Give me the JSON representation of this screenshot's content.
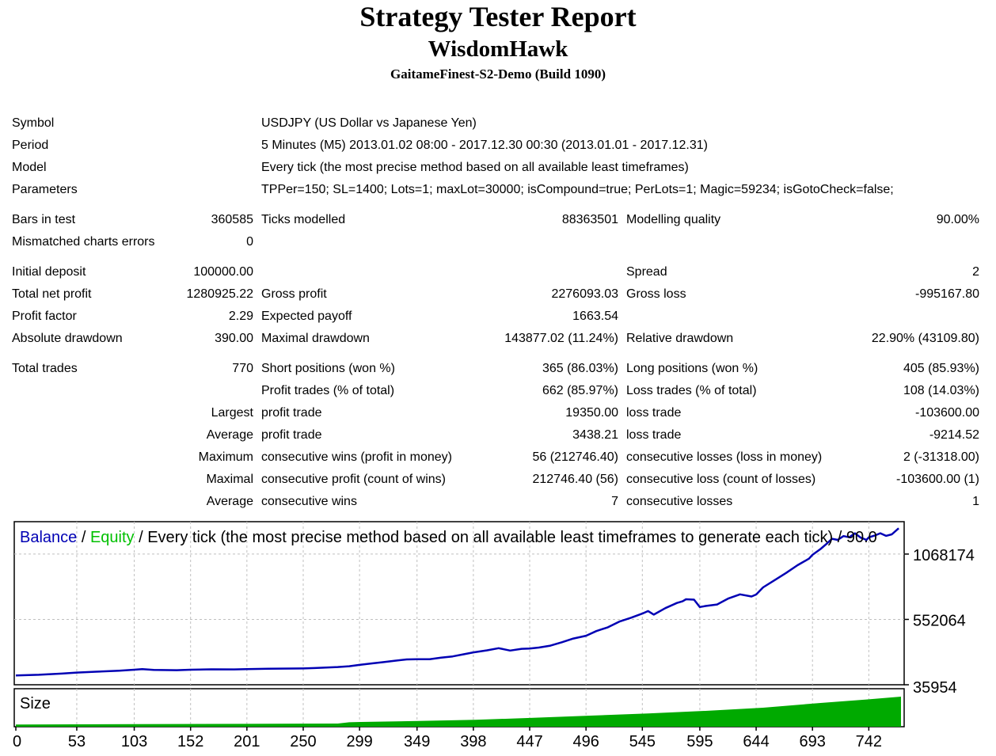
{
  "header": {
    "title": "Strategy Tester Report",
    "expert": "WisdomHawk",
    "server": "GaitameFinest-S2-Demo (Build 1090)"
  },
  "info": {
    "symbol_label": "Symbol",
    "symbol": "USDJPY (US Dollar vs Japanese Yen)",
    "period_label": "Period",
    "period": "5 Minutes (M5) 2013.01.02 08:00 - 2017.12.30 00:30 (2013.01.01 - 2017.12.31)",
    "model_label": "Model",
    "model": "Every tick (the most precise method based on all available least timeframes)",
    "parameters_label": "Parameters",
    "parameters": "TPPer=150; SL=1400; Lots=1; maxLot=30000; isCompound=true; PerLots=1; Magic=59234; isGotoCheck=false;"
  },
  "stats": {
    "bars_label": "Bars in test",
    "bars": "360585",
    "ticks_label": "Ticks modelled",
    "ticks": "88363501",
    "quality_label": "Modelling quality",
    "quality": "90.00%",
    "mismatch_label": "Mismatched charts errors",
    "mismatch": "0",
    "deposit_label": "Initial deposit",
    "deposit": "100000.00",
    "spread_label": "Spread",
    "spread": "2",
    "net_label": "Total net profit",
    "net": "1280925.22",
    "gross_profit_label": "Gross profit",
    "gross_profit": "2276093.03",
    "gross_loss_label": "Gross loss",
    "gross_loss": "-995167.80",
    "pf_label": "Profit factor",
    "pf": "2.29",
    "payoff_label": "Expected payoff",
    "payoff": "1663.54",
    "abs_dd_label": "Absolute drawdown",
    "abs_dd": "390.00",
    "max_dd_label": "Maximal drawdown",
    "max_dd": "143877.02 (11.24%)",
    "rel_dd_label": "Relative drawdown",
    "rel_dd": "22.90% (43109.80)"
  },
  "trades": {
    "total_label": "Total trades",
    "total": "770",
    "short_label": "Short positions (won %)",
    "short": "365 (86.03%)",
    "long_label": "Long positions (won %)",
    "long": "405 (85.93%)",
    "profit_trades_label": "Profit trades (% of total)",
    "profit_trades": "662 (85.97%)",
    "loss_trades_label": "Loss trades (% of total)",
    "loss_trades": "108 (14.03%)",
    "largest_label": "Largest",
    "average_label": "Average",
    "maximum_label": "Maximum",
    "maximal_label": "Maximal",
    "profit_trade_label": "profit trade",
    "loss_trade_label": "loss trade",
    "largest_profit": "19350.00",
    "largest_loss": "-103600.00",
    "average_profit": "3438.21",
    "average_loss": "-9214.52",
    "cons_wins_money_label": "consecutive wins (profit in money)",
    "cons_wins_money": "56 (212746.40)",
    "cons_losses_money_label": "consecutive losses (loss in money)",
    "cons_losses_money": "2 (-31318.00)",
    "cons_profit_count_label": "consecutive profit (count of wins)",
    "cons_profit_count": "212746.40 (56)",
    "cons_loss_count_label": "consecutive loss (count of losses)",
    "cons_loss_count": "-103600.00 (1)",
    "cons_wins_label": "consecutive wins",
    "cons_wins": "7",
    "cons_losses_label": "consecutive losses",
    "cons_losses": "1"
  },
  "chart_data": {
    "type": "line",
    "legend": {
      "balance": "Balance",
      "sep": " / ",
      "equity": "Equity",
      "rest": " / Every tick (the most precise method based on all available least timeframes to generate each tick) / 90.0"
    },
    "size_label": "Size",
    "colors": {
      "balance": "#0000b4",
      "equity": "#00c000",
      "size": "#00aa00",
      "grid": "#c0c0c0"
    },
    "ylim": [
      35954,
      1324000
    ],
    "y_ticks": [
      1068174,
      552064,
      35954
    ],
    "x_ticks": [
      0,
      53,
      103,
      152,
      201,
      250,
      299,
      349,
      398,
      447,
      496,
      545,
      595,
      644,
      693,
      742
    ],
    "xlim": [
      0,
      770
    ],
    "series": [
      {
        "name": "Balance",
        "x": [
          0,
          20,
          40,
          53,
          70,
          90,
          103,
          110,
          120,
          140,
          152,
          170,
          190,
          201,
          220,
          240,
          250,
          260,
          270,
          280,
          290,
          299,
          310,
          320,
          330,
          340,
          349,
          360,
          370,
          380,
          390,
          398,
          410,
          420,
          430,
          440,
          447,
          455,
          465,
          475,
          485,
          496,
          505,
          515,
          525,
          535,
          545,
          550,
          555,
          565,
          575,
          580,
          583,
          590,
          595,
          600,
          610,
          620,
          630,
          640,
          644,
          650,
          660,
          670,
          680,
          690,
          693,
          700,
          705,
          710,
          715,
          720,
          725,
          730,
          735,
          740,
          742,
          747,
          752,
          757,
          762,
          768
        ],
        "y": [
          110000,
          115000,
          124000,
          132000,
          139000,
          147000,
          155000,
          160000,
          153000,
          151000,
          155000,
          158000,
          157000,
          159000,
          162000,
          164000,
          165000,
          168000,
          172000,
          176000,
          182000,
          193000,
          205000,
          215000,
          226000,
          236000,
          238000,
          238000,
          250000,
          260000,
          277000,
          292000,
          308000,
          325000,
          306000,
          320000,
          322000,
          330000,
          345000,
          372000,
          401000,
          423000,
          460000,
          490000,
          535000,
          565000,
          598000,
          618000,
          590000,
          641000,
          682000,
          695000,
          711000,
          708000,
          650000,
          658000,
          670000,
          718000,
          750000,
          733000,
          749000,
          805000,
          862000,
          919000,
          980000,
          1032000,
          1062000,
          1108000,
          1147000,
          1189000,
          1180000,
          1210000,
          1201000,
          1232000,
          1198000,
          1180000,
          1200000,
          1214000,
          1233000,
          1212000,
          1224000,
          1272000
        ]
      }
    ],
    "size_series": {
      "x": [
        0,
        100,
        200,
        280,
        290,
        300,
        350,
        400,
        450,
        500,
        550,
        600,
        650,
        700,
        740,
        770
      ],
      "y": [
        0.07,
        0.08,
        0.09,
        0.1,
        0.14,
        0.15,
        0.18,
        0.22,
        0.28,
        0.35,
        0.42,
        0.5,
        0.6,
        0.75,
        0.86,
        0.95
      ]
    }
  }
}
